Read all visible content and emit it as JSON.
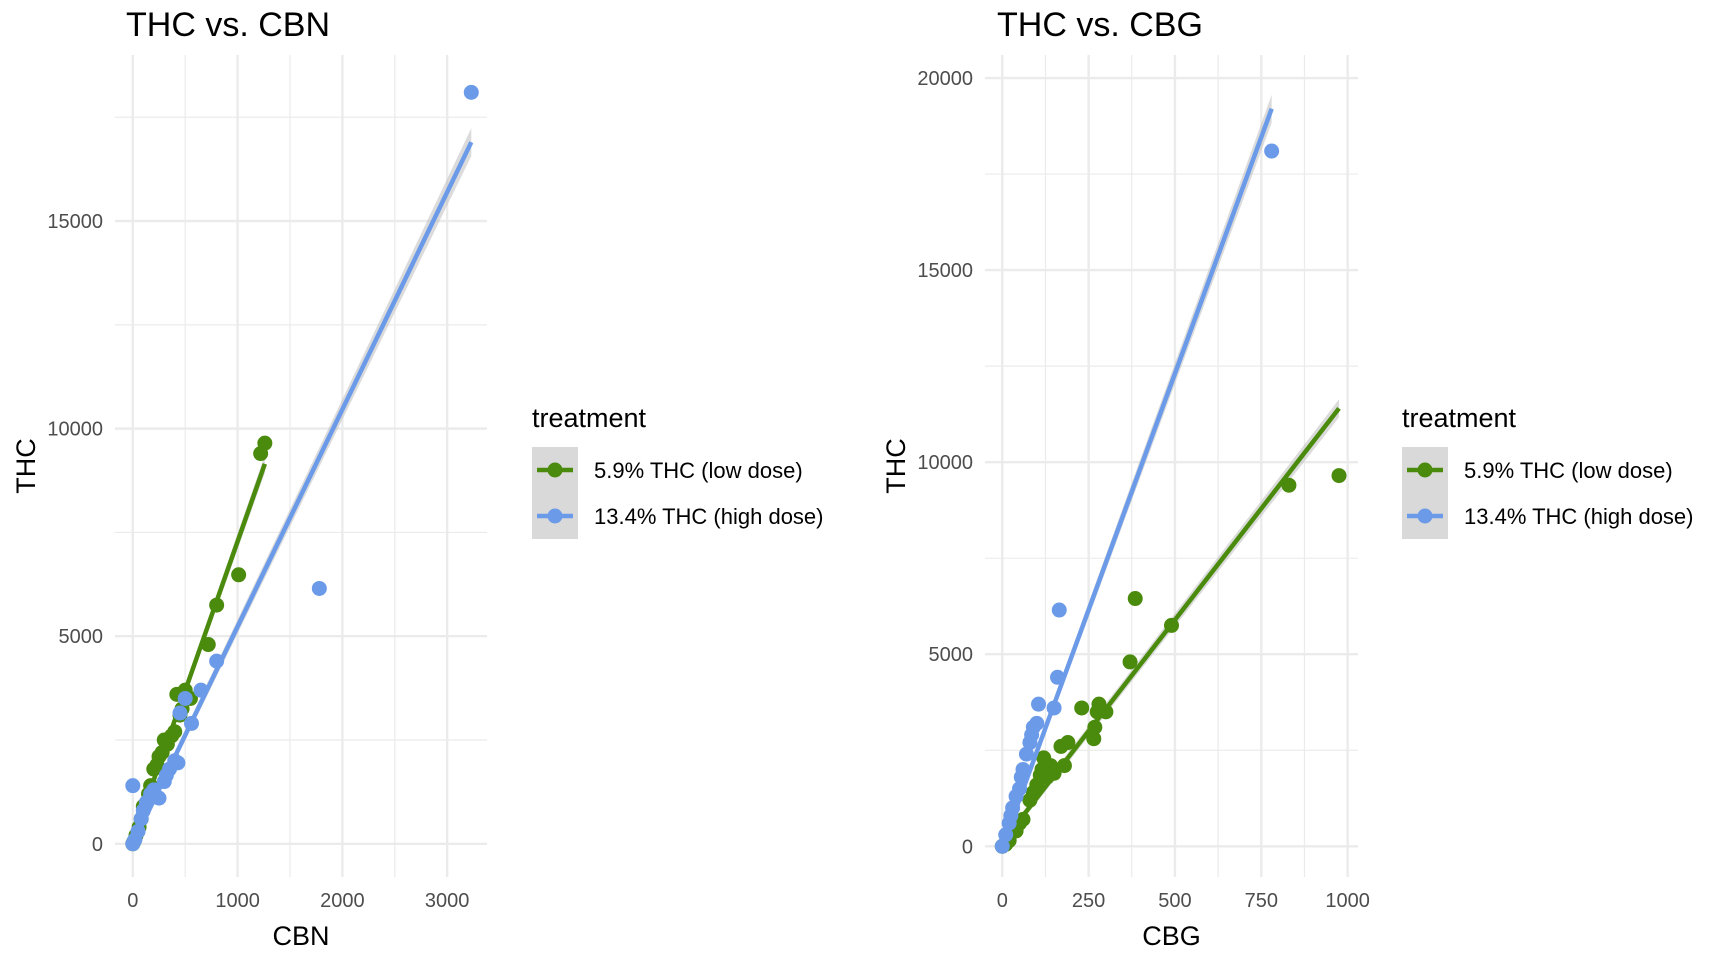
{
  "colors": {
    "low": "#4a8a0c",
    "high": "#6b9ae8",
    "grid": "#ebebeb",
    "band": "#bdbdbd",
    "legend_key_bg": "#d9d9d9"
  },
  "legend": {
    "title": "treatment",
    "entries": [
      "5.9% THC (low dose)",
      "13.4% THC (high dose)"
    ]
  },
  "chart_data": [
    {
      "type": "scatter",
      "title": "THC vs. CBN",
      "xlabel": "CBN",
      "ylabel": "THC",
      "xlim": [
        -170,
        3380
      ],
      "ylim": [
        -800,
        19000
      ],
      "xticks": [
        0,
        1000,
        2000,
        3000
      ],
      "yticks": [
        0,
        5000,
        10000,
        15000
      ],
      "grid": true,
      "legend_position": "right",
      "series": [
        {
          "name": "5.9% THC (low dose)",
          "points": [
            [
              0,
              0
            ],
            [
              10,
              50
            ],
            [
              30,
              200
            ],
            [
              60,
              400
            ],
            [
              80,
              600
            ],
            [
              100,
              900
            ],
            [
              120,
              950
            ],
            [
              150,
              1200
            ],
            [
              170,
              1400
            ],
            [
              200,
              1800
            ],
            [
              230,
              1900
            ],
            [
              250,
              2100
            ],
            [
              280,
              2200
            ],
            [
              300,
              2500
            ],
            [
              330,
              2400
            ],
            [
              370,
              2600
            ],
            [
              400,
              2700
            ],
            [
              420,
              3600
            ],
            [
              450,
              3100
            ],
            [
              470,
              3250
            ],
            [
              500,
              3700
            ],
            [
              550,
              3500
            ],
            [
              720,
              4800
            ],
            [
              800,
              5750
            ],
            [
              1010,
              6480
            ],
            [
              1220,
              9400
            ],
            [
              1260,
              9650
            ]
          ],
          "fit": [
            [
              0,
              100
            ],
            [
              1260,
              9150
            ]
          ]
        },
        {
          "name": "13.4% THC (high dose)",
          "points": [
            [
              0,
              1400
            ],
            [
              0,
              0
            ],
            [
              20,
              100
            ],
            [
              50,
              300
            ],
            [
              80,
              600
            ],
            [
              100,
              800
            ],
            [
              130,
              1000
            ],
            [
              170,
              1200
            ],
            [
              200,
              1300
            ],
            [
              250,
              1100
            ],
            [
              300,
              1500
            ],
            [
              320,
              1650
            ],
            [
              350,
              1800
            ],
            [
              400,
              2000
            ],
            [
              430,
              1950
            ],
            [
              450,
              3150
            ],
            [
              500,
              3500
            ],
            [
              560,
              2900
            ],
            [
              650,
              3700
            ],
            [
              800,
              4400
            ],
            [
              1780,
              6150
            ],
            [
              3230,
              18100
            ]
          ],
          "fit": [
            [
              0,
              0
            ],
            [
              3230,
              16900
            ]
          ]
        }
      ]
    },
    {
      "type": "scatter",
      "title": "THC vs. CBG",
      "xlabel": "CBG",
      "ylabel": "THC",
      "xlim": [
        -50,
        1030
      ],
      "ylim": [
        -800,
        20600
      ],
      "xticks": [
        0,
        250,
        500,
        750,
        1000
      ],
      "yticks": [
        0,
        5000,
        10000,
        15000,
        20000
      ],
      "grid": true,
      "legend_position": "right",
      "series": [
        {
          "name": "5.9% THC (low dose)",
          "points": [
            [
              0,
              0
            ],
            [
              10,
              50
            ],
            [
              20,
              150
            ],
            [
              40,
              400
            ],
            [
              50,
              600
            ],
            [
              60,
              700
            ],
            [
              80,
              1200
            ],
            [
              90,
              1400
            ],
            [
              100,
              1600
            ],
            [
              110,
              1850
            ],
            [
              115,
              2000
            ],
            [
              120,
              2300
            ],
            [
              130,
              1800
            ],
            [
              140,
              2100
            ],
            [
              150,
              1900
            ],
            [
              170,
              2600
            ],
            [
              180,
              2100
            ],
            [
              190,
              2700
            ],
            [
              230,
              3600
            ],
            [
              265,
              2800
            ],
            [
              268,
              3100
            ],
            [
              275,
              3500
            ],
            [
              280,
              3700
            ],
            [
              300,
              3500
            ],
            [
              370,
              4800
            ],
            [
              385,
              6450
            ],
            [
              490,
              5750
            ],
            [
              830,
              9400
            ],
            [
              975,
              9650
            ]
          ],
          "fit": [
            [
              0,
              100
            ],
            [
              975,
              11400
            ]
          ]
        },
        {
          "name": "13.4% THC (high dose)",
          "points": [
            [
              0,
              0
            ],
            [
              10,
              300
            ],
            [
              20,
              600
            ],
            [
              25,
              800
            ],
            [
              30,
              1000
            ],
            [
              40,
              1300
            ],
            [
              50,
              1500
            ],
            [
              55,
              1800
            ],
            [
              60,
              2000
            ],
            [
              70,
              2400
            ],
            [
              80,
              2700
            ],
            [
              85,
              2900
            ],
            [
              90,
              3100
            ],
            [
              100,
              3200
            ],
            [
              105,
              3700
            ],
            [
              150,
              3600
            ],
            [
              160,
              4400
            ],
            [
              165,
              6150
            ],
            [
              780,
              18100
            ]
          ],
          "fit": [
            [
              0,
              0
            ],
            [
              780,
              19200
            ]
          ]
        }
      ]
    }
  ]
}
